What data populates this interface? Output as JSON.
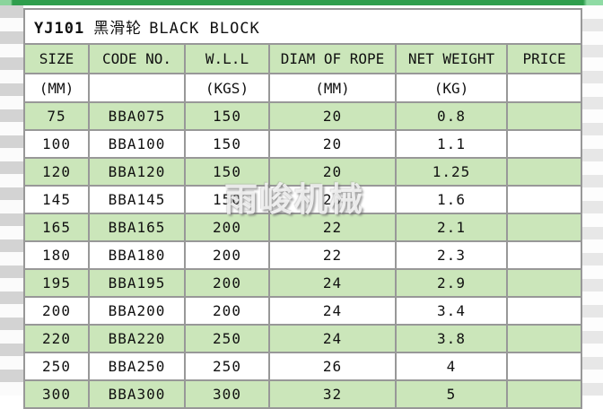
{
  "title": {
    "model": "YJ101",
    "name_cn": "黑滑轮",
    "name_en": "BLACK BLOCK"
  },
  "columns": [
    "SIZE",
    "CODE NO.",
    "W.L.L",
    "DIAM OF ROPE",
    "NET WEIGHT",
    "PRICE"
  ],
  "units": [
    "(MM)",
    "",
    "(KGS)",
    "(MM)",
    "(KG)",
    ""
  ],
  "rows": [
    [
      "75",
      "BBA075",
      "150",
      "20",
      "0.8",
      ""
    ],
    [
      "100",
      "BBA100",
      "150",
      "20",
      "1.1",
      ""
    ],
    [
      "120",
      "BBA120",
      "150",
      "20",
      "1.25",
      ""
    ],
    [
      "145",
      "BBA145",
      "150",
      "20",
      "1.6",
      ""
    ],
    [
      "165",
      "BBA165",
      "200",
      "22",
      "2.1",
      ""
    ],
    [
      "180",
      "BBA180",
      "200",
      "22",
      "2.3",
      ""
    ],
    [
      "195",
      "BBA195",
      "200",
      "24",
      "2.9",
      ""
    ],
    [
      "200",
      "BBA200",
      "200",
      "24",
      "3.4",
      ""
    ],
    [
      "220",
      "BBA220",
      "250",
      "24",
      "3.8",
      ""
    ],
    [
      "250",
      "BBA250",
      "250",
      "26",
      "4",
      ""
    ],
    [
      "300",
      "BBA300",
      "300",
      "32",
      "5",
      ""
    ]
  ],
  "watermark": "雨峻机械",
  "colors": {
    "row_green": "#cbe6ba",
    "accent_bar_green": "#2f9e4d",
    "grid_border": "#989898",
    "left_margin_stripe": "#d3d3d3",
    "right_margin_stripe": "#e7e7e7"
  }
}
